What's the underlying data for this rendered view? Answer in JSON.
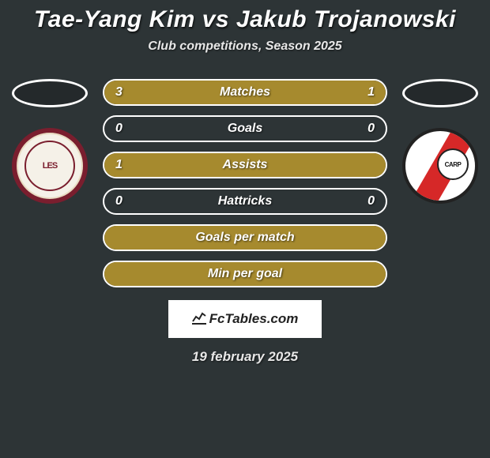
{
  "title": "Tae-Yang Kim vs Jakub Trojanowski",
  "subtitle": "Club competitions, Season 2025",
  "date": "19 february 2025",
  "brand": "FcTables.com",
  "colors": {
    "bar_fill": "#a68a2e",
    "bar_border": "#ffffff",
    "background": "#2d3436",
    "text": "#ffffff"
  },
  "crest_left": "LES",
  "crest_right": "CARP",
  "bars": [
    {
      "label": "Matches",
      "left": "3",
      "right": "1",
      "left_pct": 75,
      "right_pct": 25
    },
    {
      "label": "Goals",
      "left": "0",
      "right": "0",
      "left_pct": 0,
      "right_pct": 0
    },
    {
      "label": "Assists",
      "left": "1",
      "right": "",
      "left_pct": 100,
      "right_pct": 0
    },
    {
      "label": "Hattricks",
      "left": "0",
      "right": "0",
      "left_pct": 0,
      "right_pct": 0
    },
    {
      "label": "Goals per match",
      "left": "",
      "right": "",
      "left_pct": 100,
      "right_pct": 0
    },
    {
      "label": "Min per goal",
      "left": "",
      "right": "",
      "left_pct": 100,
      "right_pct": 0
    }
  ]
}
